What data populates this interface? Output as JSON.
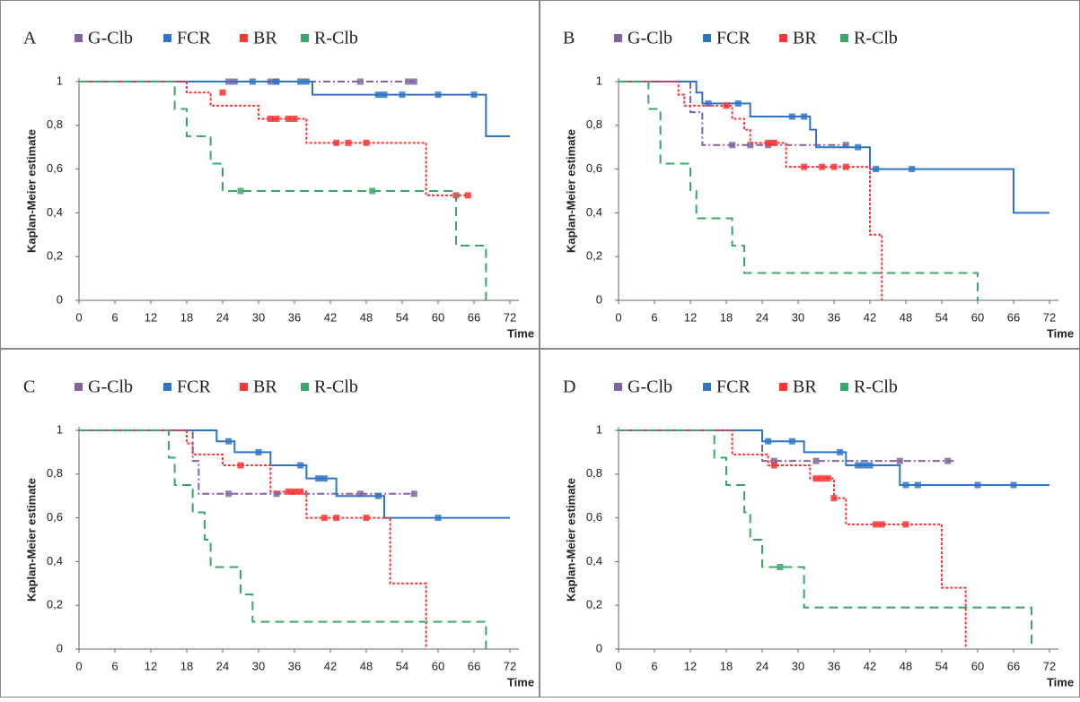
{
  "chart_data": [
    {
      "type": "line",
      "step": "post",
      "panel_label": "A",
      "x_label": "Time",
      "y_label": "Kaplan-Meier estimate",
      "xlim": [
        0,
        72
      ],
      "xticks": [
        0,
        6,
        12,
        18,
        24,
        30,
        36,
        42,
        48,
        54,
        60,
        66,
        72
      ],
      "ylim": [
        0,
        1
      ],
      "yticks": [
        0,
        {
          "value": 0.2,
          "label": "0,2"
        },
        {
          "value": 0.4,
          "label": "0,4"
        },
        {
          "value": 0.6,
          "label": "0,6"
        },
        {
          "value": 0.8,
          "label": "0,8"
        },
        1
      ],
      "series": [
        {
          "name": "G-Clb",
          "color": "#8064a2",
          "dash": "dashdot",
          "x": [
            0,
            56
          ],
          "values": [
            1,
            1
          ],
          "censored_x": [
            25,
            26,
            32,
            33,
            47,
            55,
            56
          ],
          "censored_values": [
            1,
            1,
            1,
            1,
            1,
            1,
            1
          ]
        },
        {
          "name": "FCR",
          "color": "#2e75c8",
          "dash": "solid",
          "x": [
            0,
            39,
            68,
            72
          ],
          "values": [
            1,
            0.94,
            0.75,
            0.75
          ],
          "censored_x": [
            29,
            33,
            37,
            38,
            50,
            51,
            54,
            60,
            66
          ],
          "censored_values": [
            1,
            1,
            1,
            1,
            0.94,
            0.94,
            0.94,
            0.94,
            0.94
          ]
        },
        {
          "name": "BR",
          "color": "#ff3333",
          "dash": "dotted",
          "x": [
            0,
            18,
            22,
            30,
            38,
            58,
            65
          ],
          "values": [
            1,
            0.95,
            0.89,
            0.83,
            0.72,
            0.48,
            0.48
          ],
          "censored_x": [
            24,
            32,
            33,
            35,
            36,
            43,
            45,
            48,
            63,
            65
          ],
          "censored_values": [
            0.95,
            0.83,
            0.83,
            0.83,
            0.83,
            0.72,
            0.72,
            0.72,
            0.48,
            0.48
          ]
        },
        {
          "name": "R-Clb",
          "color": "#3aa86b",
          "dash": "dashed",
          "x": [
            0,
            16,
            18,
            22,
            24,
            63,
            68
          ],
          "values": [
            1,
            0.875,
            0.75,
            0.625,
            0.5,
            0.25,
            0
          ],
          "censored_x": [
            27,
            49
          ],
          "censored_values": [
            0.5,
            0.5
          ]
        }
      ]
    },
    {
      "type": "line",
      "step": "post",
      "panel_label": "B",
      "x_label": "Time",
      "y_label": "Kaplan-Meier estimate",
      "xlim": [
        0,
        72
      ],
      "xticks": [
        0,
        6,
        12,
        18,
        24,
        30,
        36,
        42,
        48,
        54,
        60,
        66,
        72
      ],
      "ylim": [
        0,
        1
      ],
      "yticks": [
        0,
        {
          "value": 0.2,
          "label": "0,2"
        },
        {
          "value": 0.4,
          "label": "0,4"
        },
        {
          "value": 0.6,
          "label": "0,6"
        },
        {
          "value": 0.8,
          "label": "0,8"
        },
        1
      ],
      "series": [
        {
          "name": "G-Clb",
          "color": "#8064a2",
          "dash": "dashdot",
          "x": [
            0,
            12,
            14,
            38
          ],
          "values": [
            1,
            0.86,
            0.71,
            0.71
          ],
          "censored_x": [
            19,
            22,
            25,
            38
          ],
          "censored_values": [
            0.71,
            0.71,
            0.71,
            0.71
          ]
        },
        {
          "name": "FCR",
          "color": "#2e75c8",
          "dash": "solid",
          "x": [
            0,
            13,
            14,
            22,
            32,
            33,
            42,
            66,
            72
          ],
          "values": [
            1,
            0.95,
            0.9,
            0.84,
            0.78,
            0.7,
            0.6,
            0.4,
            0.4
          ],
          "censored_x": [
            15,
            20,
            29,
            31,
            40,
            43,
            49
          ],
          "censored_values": [
            0.9,
            0.9,
            0.84,
            0.84,
            0.7,
            0.6,
            0.6
          ]
        },
        {
          "name": "BR",
          "color": "#ff3333",
          "dash": "dotted",
          "x": [
            0,
            10,
            11,
            19,
            21,
            22,
            28,
            42,
            44
          ],
          "values": [
            1,
            0.94,
            0.89,
            0.83,
            0.78,
            0.72,
            0.61,
            0.3,
            0
          ],
          "censored_x": [
            18,
            25,
            26,
            31,
            34,
            36,
            38
          ],
          "censored_values": [
            0.89,
            0.72,
            0.72,
            0.61,
            0.61,
            0.61,
            0.61
          ]
        },
        {
          "name": "R-Clb",
          "color": "#3aa86b",
          "dash": "dashed",
          "x": [
            0,
            5,
            7,
            12,
            13,
            19,
            21,
            60
          ],
          "values": [
            1,
            0.875,
            0.625,
            0.5,
            0.375,
            0.25,
            0.125,
            0
          ],
          "censored_x": [],
          "censored_values": []
        }
      ]
    },
    {
      "type": "line",
      "step": "post",
      "panel_label": "C",
      "x_label": "Time",
      "y_label": "Kaplan-Meier estimate",
      "xlim": [
        0,
        72
      ],
      "xticks": [
        0,
        6,
        12,
        18,
        24,
        30,
        36,
        42,
        48,
        54,
        60,
        66,
        72
      ],
      "ylim": [
        0,
        1
      ],
      "yticks": [
        0,
        {
          "value": 0.2,
          "label": "0,2"
        },
        {
          "value": 0.4,
          "label": "0,4"
        },
        {
          "value": 0.6,
          "label": "0,6"
        },
        {
          "value": 0.8,
          "label": "0,8"
        },
        1
      ],
      "series": [
        {
          "name": "G-Clb",
          "color": "#8064a2",
          "dash": "dashdot",
          "x": [
            0,
            19,
            20,
            56
          ],
          "values": [
            1,
            0.86,
            0.71,
            0.71
          ],
          "censored_x": [
            25,
            33,
            47,
            56
          ],
          "censored_values": [
            0.71,
            0.71,
            0.71,
            0.71
          ]
        },
        {
          "name": "FCR",
          "color": "#2e75c8",
          "dash": "solid",
          "x": [
            0,
            23,
            26,
            32,
            38,
            43,
            51,
            72
          ],
          "values": [
            1,
            0.95,
            0.9,
            0.84,
            0.78,
            0.7,
            0.6,
            0.6
          ],
          "censored_x": [
            25,
            30,
            37,
            40,
            41,
            50,
            60
          ],
          "censored_values": [
            0.95,
            0.9,
            0.84,
            0.78,
            0.78,
            0.7,
            0.6
          ]
        },
        {
          "name": "BR",
          "color": "#ff3333",
          "dash": "dotted",
          "x": [
            0,
            18,
            19,
            24,
            32,
            38,
            52,
            58
          ],
          "values": [
            1,
            0.94,
            0.89,
            0.84,
            0.72,
            0.6,
            0.3,
            0
          ],
          "censored_x": [
            27,
            35,
            36,
            37,
            41,
            43,
            48
          ],
          "censored_values": [
            0.84,
            0.72,
            0.72,
            0.72,
            0.6,
            0.6,
            0.6
          ]
        },
        {
          "name": "R-Clb",
          "color": "#3aa86b",
          "dash": "dashed",
          "x": [
            0,
            15,
            16,
            19,
            21,
            22,
            27,
            29,
            68
          ],
          "values": [
            1,
            0.875,
            0.75,
            0.625,
            0.5,
            0.375,
            0.25,
            0.125,
            0
          ],
          "censored_x": [],
          "censored_values": []
        }
      ]
    },
    {
      "type": "line",
      "step": "post",
      "panel_label": "D",
      "x_label": "Time",
      "y_label": "Kaplan-Meier estimate",
      "xlim": [
        0,
        72
      ],
      "xticks": [
        0,
        6,
        12,
        18,
        24,
        30,
        36,
        42,
        48,
        54,
        60,
        66,
        72
      ],
      "ylim": [
        0,
        1
      ],
      "yticks": [
        0,
        {
          "value": 0.2,
          "label": "0,2"
        },
        {
          "value": 0.4,
          "label": "0,4"
        },
        {
          "value": 0.6,
          "label": "0,6"
        },
        {
          "value": 0.8,
          "label": "0,8"
        },
        1
      ],
      "series": [
        {
          "name": "G-Clb",
          "color": "#8064a2",
          "dash": "dashdot",
          "x": [
            0,
            24,
            56
          ],
          "values": [
            1,
            0.86,
            0.86
          ],
          "censored_x": [
            26,
            33,
            47,
            55
          ],
          "censored_values": [
            0.86,
            0.86,
            0.86,
            0.86
          ]
        },
        {
          "name": "FCR",
          "color": "#2e75c8",
          "dash": "solid",
          "x": [
            0,
            24,
            31,
            38,
            47,
            72
          ],
          "values": [
            1,
            0.95,
            0.9,
            0.84,
            0.75,
            0.75
          ],
          "censored_x": [
            25,
            29,
            37,
            40,
            41,
            42,
            48,
            50,
            60,
            66
          ],
          "censored_values": [
            0.95,
            0.95,
            0.9,
            0.84,
            0.84,
            0.84,
            0.75,
            0.75,
            0.75,
            0.75
          ]
        },
        {
          "name": "BR",
          "color": "#ff3333",
          "dash": "dotted",
          "x": [
            0,
            19,
            25,
            32,
            36,
            38,
            54,
            58
          ],
          "values": [
            1,
            0.89,
            0.84,
            0.78,
            0.69,
            0.57,
            0.28,
            0
          ],
          "censored_x": [
            26,
            33,
            34,
            35,
            36,
            43,
            44,
            48
          ],
          "censored_values": [
            0.84,
            0.78,
            0.78,
            0.78,
            0.69,
            0.57,
            0.57,
            0.57
          ]
        },
        {
          "name": "R-Clb",
          "color": "#3aa86b",
          "dash": "dashed",
          "x": [
            0,
            16,
            18,
            21,
            22,
            24,
            31,
            69
          ],
          "values": [
            1,
            0.875,
            0.75,
            0.625,
            0.5,
            0.375,
            0.19,
            0
          ],
          "censored_x": [
            27
          ],
          "censored_values": [
            0.375
          ]
        }
      ]
    }
  ]
}
